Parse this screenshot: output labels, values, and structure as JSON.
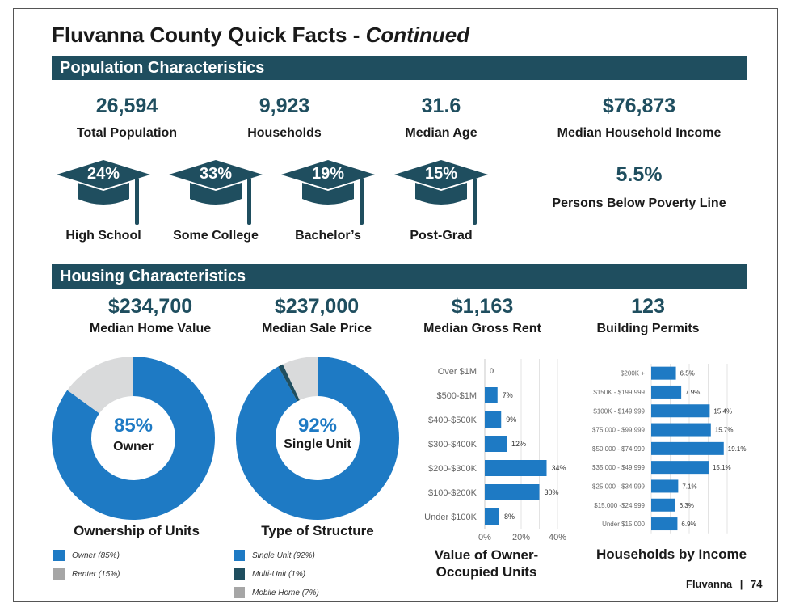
{
  "page": {
    "title_main": "Fluvanna County Quick Facts - ",
    "title_emph": "Continued",
    "footer_name": "Fluvanna",
    "footer_sep": "|",
    "footer_page": "74"
  },
  "colors": {
    "banner": "#1f4e5f",
    "blue": "#1e7ac4",
    "dark_teal": "#1f4e5f",
    "gray": "#d9dadb",
    "legend_gray": "#a6a6a6"
  },
  "population": {
    "banner": "Population Characteristics",
    "stats": [
      {
        "value": "26,594",
        "label": "Total Population"
      },
      {
        "value": "9,923",
        "label": "Households"
      },
      {
        "value": "31.6",
        "label": "Median Age"
      },
      {
        "value": "$76,873",
        "label": "Median Household Income"
      }
    ],
    "poverty": {
      "value": "5.5%",
      "label": "Persons Below Poverty Line"
    },
    "education": [
      {
        "pct": "24%",
        "label": "High School",
        "icon": "graduation-cap-icon"
      },
      {
        "pct": "33%",
        "label": "Some College",
        "icon": "graduation-cap-icon"
      },
      {
        "pct": "19%",
        "label": "Bachelor’s",
        "icon": "graduation-cap-icon"
      },
      {
        "pct": "15%",
        "label": "Post-Grad",
        "icon": "graduation-cap-icon"
      }
    ]
  },
  "housing": {
    "banner": "Housing Characteristics",
    "stats": [
      {
        "value": "$234,700",
        "label": "Median Home Value"
      },
      {
        "value": "$237,000",
        "label": "Median Sale Price"
      },
      {
        "value": "$1,163",
        "label": "Median Gross Rent"
      },
      {
        "value": "123",
        "label": "Building Permits"
      }
    ]
  },
  "chart_data": [
    {
      "type": "pie",
      "title": "Ownership of Units",
      "center_pct": "85%",
      "center_label": "Owner",
      "slices": [
        {
          "name": "Owner (85%)",
          "value": 85,
          "color": "#1e7ac4"
        },
        {
          "name": "Renter (15%)",
          "value": 15,
          "color": "#d9dadb"
        }
      ],
      "legend_colors": [
        "#1e7ac4",
        "#a6a6a6"
      ]
    },
    {
      "type": "pie",
      "title": "Type of Structure",
      "center_pct": "92%",
      "center_label": "Single Unit",
      "slices": [
        {
          "name": "Single Unit (92%)",
          "value": 92,
          "color": "#1e7ac4"
        },
        {
          "name": "Multi-Unit (1%)",
          "value": 1,
          "color": "#1f4e5f"
        },
        {
          "name": "Mobile Home (7%)",
          "value": 7,
          "color": "#d9dadb"
        }
      ],
      "legend_colors": [
        "#1e7ac4",
        "#1f4e5f",
        "#a6a6a6"
      ]
    },
    {
      "type": "bar",
      "orientation": "horizontal",
      "title": "Value of Owner-Occupied Units",
      "title_lines": [
        "Value of Owner-",
        "Occupied Units"
      ],
      "categories": [
        "Over $1M",
        "$500-$1M",
        "$400-$500K",
        "$300-$400K",
        "$200-$300K",
        "$100-$200K",
        "Under $100K"
      ],
      "values": [
        0,
        7,
        9,
        12,
        34,
        30,
        8
      ],
      "value_labels": [
        "0",
        "7%",
        "9%",
        "12%",
        "34%",
        "30%",
        "8%"
      ],
      "xticks": [
        "0%",
        "20%",
        "40%"
      ],
      "xlim": [
        0,
        40
      ],
      "grid": true,
      "color": "#1e7ac4"
    },
    {
      "type": "bar",
      "orientation": "horizontal",
      "title": "Households by Income",
      "categories": [
        "$200K +",
        "$150K - $199,999",
        "$100K - $149,999",
        "$75,000 - $99,999",
        "$50,000 - $74,999",
        "$35,000 - $49,999",
        "$25,000 - $34,999",
        "$15,000 -$24,999",
        "Under $15,000"
      ],
      "values": [
        6.5,
        7.9,
        15.4,
        15.7,
        19.1,
        15.1,
        7.1,
        6.3,
        6.9
      ],
      "value_labels": [
        "6.5%",
        "7.9%",
        "15.4%",
        "15.7%",
        "19.1%",
        "15.1%",
        "7.1%",
        "6.3%",
        "6.9%"
      ],
      "xlim": [
        0,
        20
      ],
      "grid": true,
      "color": "#1e7ac4"
    }
  ]
}
